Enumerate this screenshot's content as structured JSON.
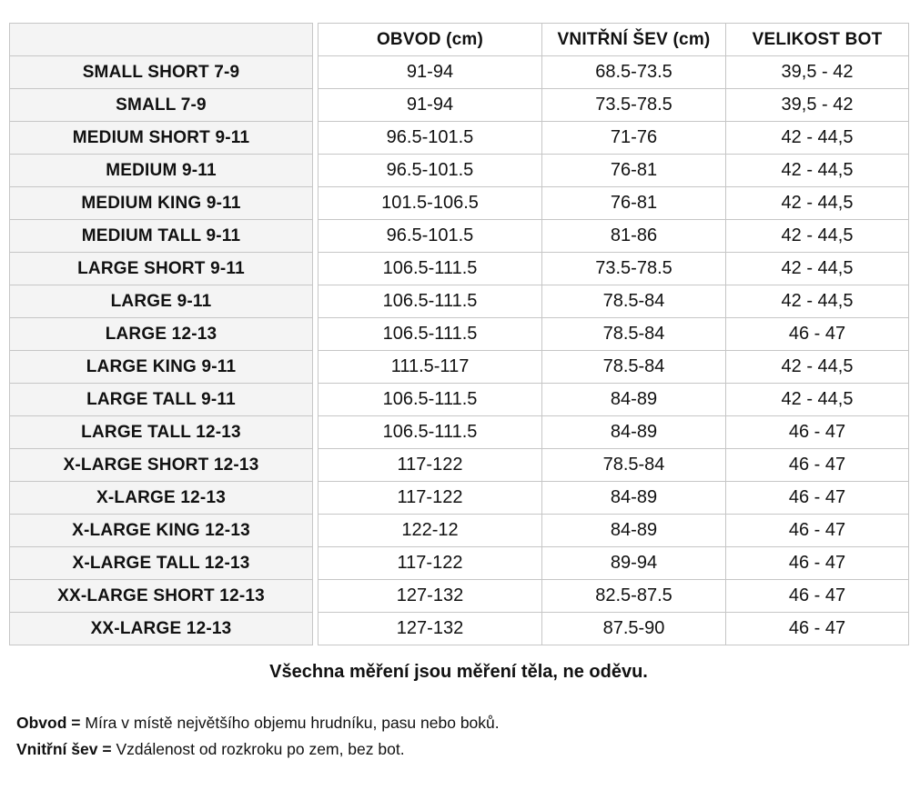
{
  "table": {
    "columns": [
      "OBVOD (cm)",
      "VNITŘNÍ ŠEV (cm)",
      "VELIKOST BOT"
    ],
    "rows": [
      {
        "label": "SMALL SHORT 7-9",
        "obvod": "91-94",
        "sev": "68.5-73.5",
        "boty": "39,5 - 42"
      },
      {
        "label": "SMALL 7-9",
        "obvod": "91-94",
        "sev": "73.5-78.5",
        "boty": "39,5 - 42"
      },
      {
        "label": "MEDIUM SHORT 9-11",
        "obvod": "96.5-101.5",
        "sev": "71-76",
        "boty": "42 - 44,5"
      },
      {
        "label": "MEDIUM 9-11",
        "obvod": "96.5-101.5",
        "sev": "76-81",
        "boty": "42 - 44,5"
      },
      {
        "label": "MEDIUM KING 9-11",
        "obvod": "101.5-106.5",
        "sev": "76-81",
        "boty": "42 - 44,5"
      },
      {
        "label": "MEDIUM TALL 9-11",
        "obvod": "96.5-101.5",
        "sev": "81-86",
        "boty": "42 - 44,5"
      },
      {
        "label": "LARGE SHORT 9-11",
        "obvod": "106.5-111.5",
        "sev": "73.5-78.5",
        "boty": "42 - 44,5"
      },
      {
        "label": "LARGE 9-11",
        "obvod": "106.5-111.5",
        "sev": "78.5-84",
        "boty": "42 - 44,5"
      },
      {
        "label": "LARGE 12-13",
        "obvod": "106.5-111.5",
        "sev": "78.5-84",
        "boty": "46 - 47"
      },
      {
        "label": "LARGE KING 9-11",
        "obvod": "111.5-117",
        "sev": "78.5-84",
        "boty": "42 - 44,5"
      },
      {
        "label": "LARGE TALL 9-11",
        "obvod": "106.5-111.5",
        "sev": "84-89",
        "boty": "42 - 44,5"
      },
      {
        "label": "LARGE TALL 12-13",
        "obvod": "106.5-111.5",
        "sev": "84-89",
        "boty": "46 - 47"
      },
      {
        "label": "X-LARGE SHORT 12-13",
        "obvod": "117-122",
        "sev": "78.5-84",
        "boty": "46 - 47"
      },
      {
        "label": "X-LARGE 12-13",
        "obvod": "117-122",
        "sev": "84-89",
        "boty": "46 - 47"
      },
      {
        "label": "X-LARGE KING 12-13",
        "obvod": "122-12",
        "sev": "84-89",
        "boty": "46 - 47"
      },
      {
        "label": "X-LARGE TALL 12-13",
        "obvod": "117-122",
        "sev": "89-94",
        "boty": "46 - 47"
      },
      {
        "label": "XX-LARGE SHORT 12-13",
        "obvod": "127-132",
        "sev": "82.5-87.5",
        "boty": "46 - 47"
      },
      {
        "label": "XX-LARGE 12-13",
        "obvod": "127-132",
        "sev": "87.5-90",
        "boty": "46 - 47"
      }
    ]
  },
  "notes": {
    "measurement_note": "Všechna měření jsou měření těla, ne oděvu.",
    "definitions": [
      {
        "term": "Obvod =",
        "text": "Míra v místě největšího objemu hrudníku, pasu nebo boků."
      },
      {
        "term": "Vnitřní šev =",
        "text": "Vzdálenost od rozkroku po zem, bez bot."
      }
    ]
  },
  "colors": {
    "label_background": "#f4f4f4",
    "cell_background": "#ffffff",
    "border": "#c6c6c6",
    "text": "#111111"
  }
}
